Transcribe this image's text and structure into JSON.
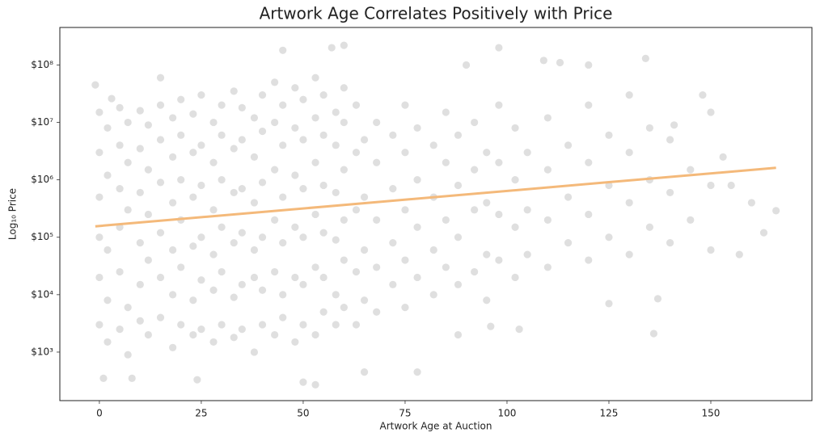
{
  "chart_data": {
    "type": "scatter",
    "title": "Artwork Age Correlates Positively with Price",
    "x_label": "Artwork Age at Auction",
    "y_label": "Log₁₀ Price",
    "log_y": true,
    "color": "#dcdcdc",
    "xlim": [
      -9.7,
      174.8
    ],
    "ylim": [
      143,
      450000000
    ],
    "xticks": [
      0,
      25,
      50,
      75,
      100,
      125,
      150
    ],
    "yticks": [
      {
        "value": 1000,
        "label": "$10³"
      },
      {
        "value": 10000,
        "label": "$10⁴"
      },
      {
        "value": 100000,
        "label": "$10⁵"
      },
      {
        "value": 1000000,
        "label": "$10⁶"
      },
      {
        "value": 10000000,
        "label": "$10⁷"
      },
      {
        "value": 100000000,
        "label": "$10⁸"
      }
    ],
    "x": [
      0,
      0,
      0,
      0,
      0,
      0,
      2,
      2,
      2,
      2,
      2,
      5,
      5,
      5,
      5,
      5,
      5,
      7,
      7,
      7,
      7,
      7,
      10,
      10,
      10,
      10,
      10,
      10,
      12,
      12,
      12,
      12,
      12,
      15,
      15,
      15,
      15,
      15,
      15,
      18,
      18,
      18,
      18,
      18,
      18,
      20,
      20,
      20,
      20,
      20,
      20,
      23,
      23,
      23,
      23,
      23,
      23,
      25,
      25,
      25,
      25,
      25,
      25,
      28,
      28,
      28,
      28,
      28,
      28,
      30,
      30,
      30,
      30,
      30,
      30,
      33,
      33,
      33,
      33,
      33,
      33,
      35,
      35,
      35,
      35,
      35,
      35,
      38,
      38,
      38,
      38,
      38,
      38,
      40,
      40,
      40,
      40,
      40,
      40,
      43,
      43,
      43,
      43,
      43,
      43,
      45,
      45,
      45,
      45,
      45,
      45,
      48,
      48,
      48,
      48,
      48,
      48,
      50,
      50,
      50,
      50,
      50,
      50,
      53,
      53,
      53,
      53,
      53,
      53,
      55,
      55,
      55,
      55,
      55,
      55,
      58,
      58,
      58,
      58,
      58,
      58,
      60,
      60,
      60,
      60,
      60,
      60,
      63,
      63,
      63,
      63,
      63,
      65,
      65,
      65,
      65,
      68,
      68,
      68,
      68,
      68,
      72,
      72,
      72,
      72,
      75,
      75,
      75,
      75,
      75,
      78,
      78,
      78,
      78,
      82,
      82,
      82,
      82,
      85,
      85,
      85,
      85,
      88,
      88,
      88,
      88,
      92,
      92,
      92,
      92,
      95,
      95,
      95,
      95,
      98,
      98,
      98,
      98,
      102,
      102,
      102,
      102,
      105,
      105,
      105,
      110,
      110,
      110,
      110,
      115,
      115,
      115,
      120,
      120,
      120,
      120,
      125,
      125,
      125,
      130,
      130,
      130,
      130,
      135,
      135,
      135,
      140,
      140,
      140,
      145,
      145,
      150,
      150,
      -1,
      1,
      8,
      24,
      50,
      53,
      60,
      57,
      45,
      98,
      134,
      109,
      166,
      157,
      136,
      78,
      65,
      15,
      3,
      148,
      150,
      163,
      155,
      141,
      120,
      113,
      90,
      103,
      96,
      88,
      160,
      153,
      137,
      125
    ],
    "values": [
      3000,
      20000,
      100000,
      500000,
      3000000,
      15000000,
      1500,
      8000,
      60000,
      1200000,
      8000000,
      2500,
      25000,
      150000,
      700000,
      4000000,
      18000000,
      900,
      6000,
      300000,
      2000000,
      10000000,
      3500,
      15000,
      80000,
      600000,
      3500000,
      16000000,
      2000,
      40000,
      250000,
      1500000,
      9000000,
      4000,
      20000,
      120000,
      900000,
      5000000,
      20000000,
      1200,
      10000,
      60000,
      400000,
      2500000,
      12000000,
      3000,
      30000,
      200000,
      1000000,
      6000000,
      25000000,
      2000,
      8000,
      70000,
      500000,
      3000000,
      14000000,
      2500,
      18000,
      100000,
      800000,
      4000000,
      30000000,
      1500,
      12000,
      50000,
      300000,
      2000000,
      10000000,
      3000,
      25000,
      150000,
      1000000,
      6000000,
      20000000,
      1800,
      9000,
      80000,
      600000,
      3500000,
      35000000,
      2500,
      15000,
      120000,
      700000,
      5000000,
      18000000,
      1000,
      20000,
      60000,
      400000,
      2500000,
      12000000,
      3000,
      12000,
      100000,
      900000,
      7000000,
      30000000,
      2000,
      25000,
      200000,
      1500000,
      10000000,
      50000000,
      4000,
      10000,
      80000,
      500000,
      4000000,
      20000000,
      1500,
      20000,
      150000,
      1200000,
      8000000,
      40000000,
      3000,
      15000,
      100000,
      700000,
      5000000,
      25000000,
      2000,
      30000,
      250000,
      2000000,
      12000000,
      60000000,
      5000,
      20000,
      120000,
      800000,
      6000000,
      30000000,
      3000,
      10000,
      90000,
      600000,
      4000000,
      15000000,
      6000,
      40000,
      200000,
      1500000,
      10000000,
      40000000,
      3000,
      25000,
      300000,
      3000000,
      20000000,
      8000,
      60000,
      500000,
      5000000,
      5000,
      30000,
      200000,
      2000000,
      10000000,
      15000,
      80000,
      700000,
      6000000,
      6000,
      40000,
      300000,
      3000000,
      20000000,
      20000,
      150000,
      1000000,
      8000000,
      10000,
      60000,
      500000,
      4000000,
      30000,
      200000,
      2000000,
      15000000,
      15000,
      100000,
      800000,
      6000000,
      25000,
      300000,
      1500000,
      10000000,
      8000,
      50000,
      400000,
      3000000,
      40000,
      250000,
      2000000,
      20000000,
      20000,
      150000,
      1000000,
      8000000,
      50000,
      300000,
      3000000,
      30000,
      200000,
      1500000,
      12000000,
      80000,
      500000,
      4000000,
      40000,
      250000,
      2000000,
      20000000,
      100000,
      800000,
      6000000,
      50000,
      400000,
      3000000,
      30000000,
      150000,
      1000000,
      8000000,
      80000,
      600000,
      5000000,
      200000,
      1500000,
      60000,
      800000,
      45000000,
      350,
      350,
      330,
      300,
      270,
      220000000,
      200000000,
      180000000,
      200000000,
      130000000,
      120000000,
      290000,
      50000,
      2100,
      450,
      450,
      60000000,
      26000000,
      30000000,
      15000000,
      120000,
      800000,
      9000000,
      100000000,
      110000000,
      100000000,
      2500,
      2800,
      2000,
      400000,
      2500000,
      8500,
      7000
    ],
    "trend_line": {
      "color": "#f4b97a",
      "x": [
        -1,
        166
      ],
      "values": [
        155000,
        1620000
      ]
    }
  }
}
